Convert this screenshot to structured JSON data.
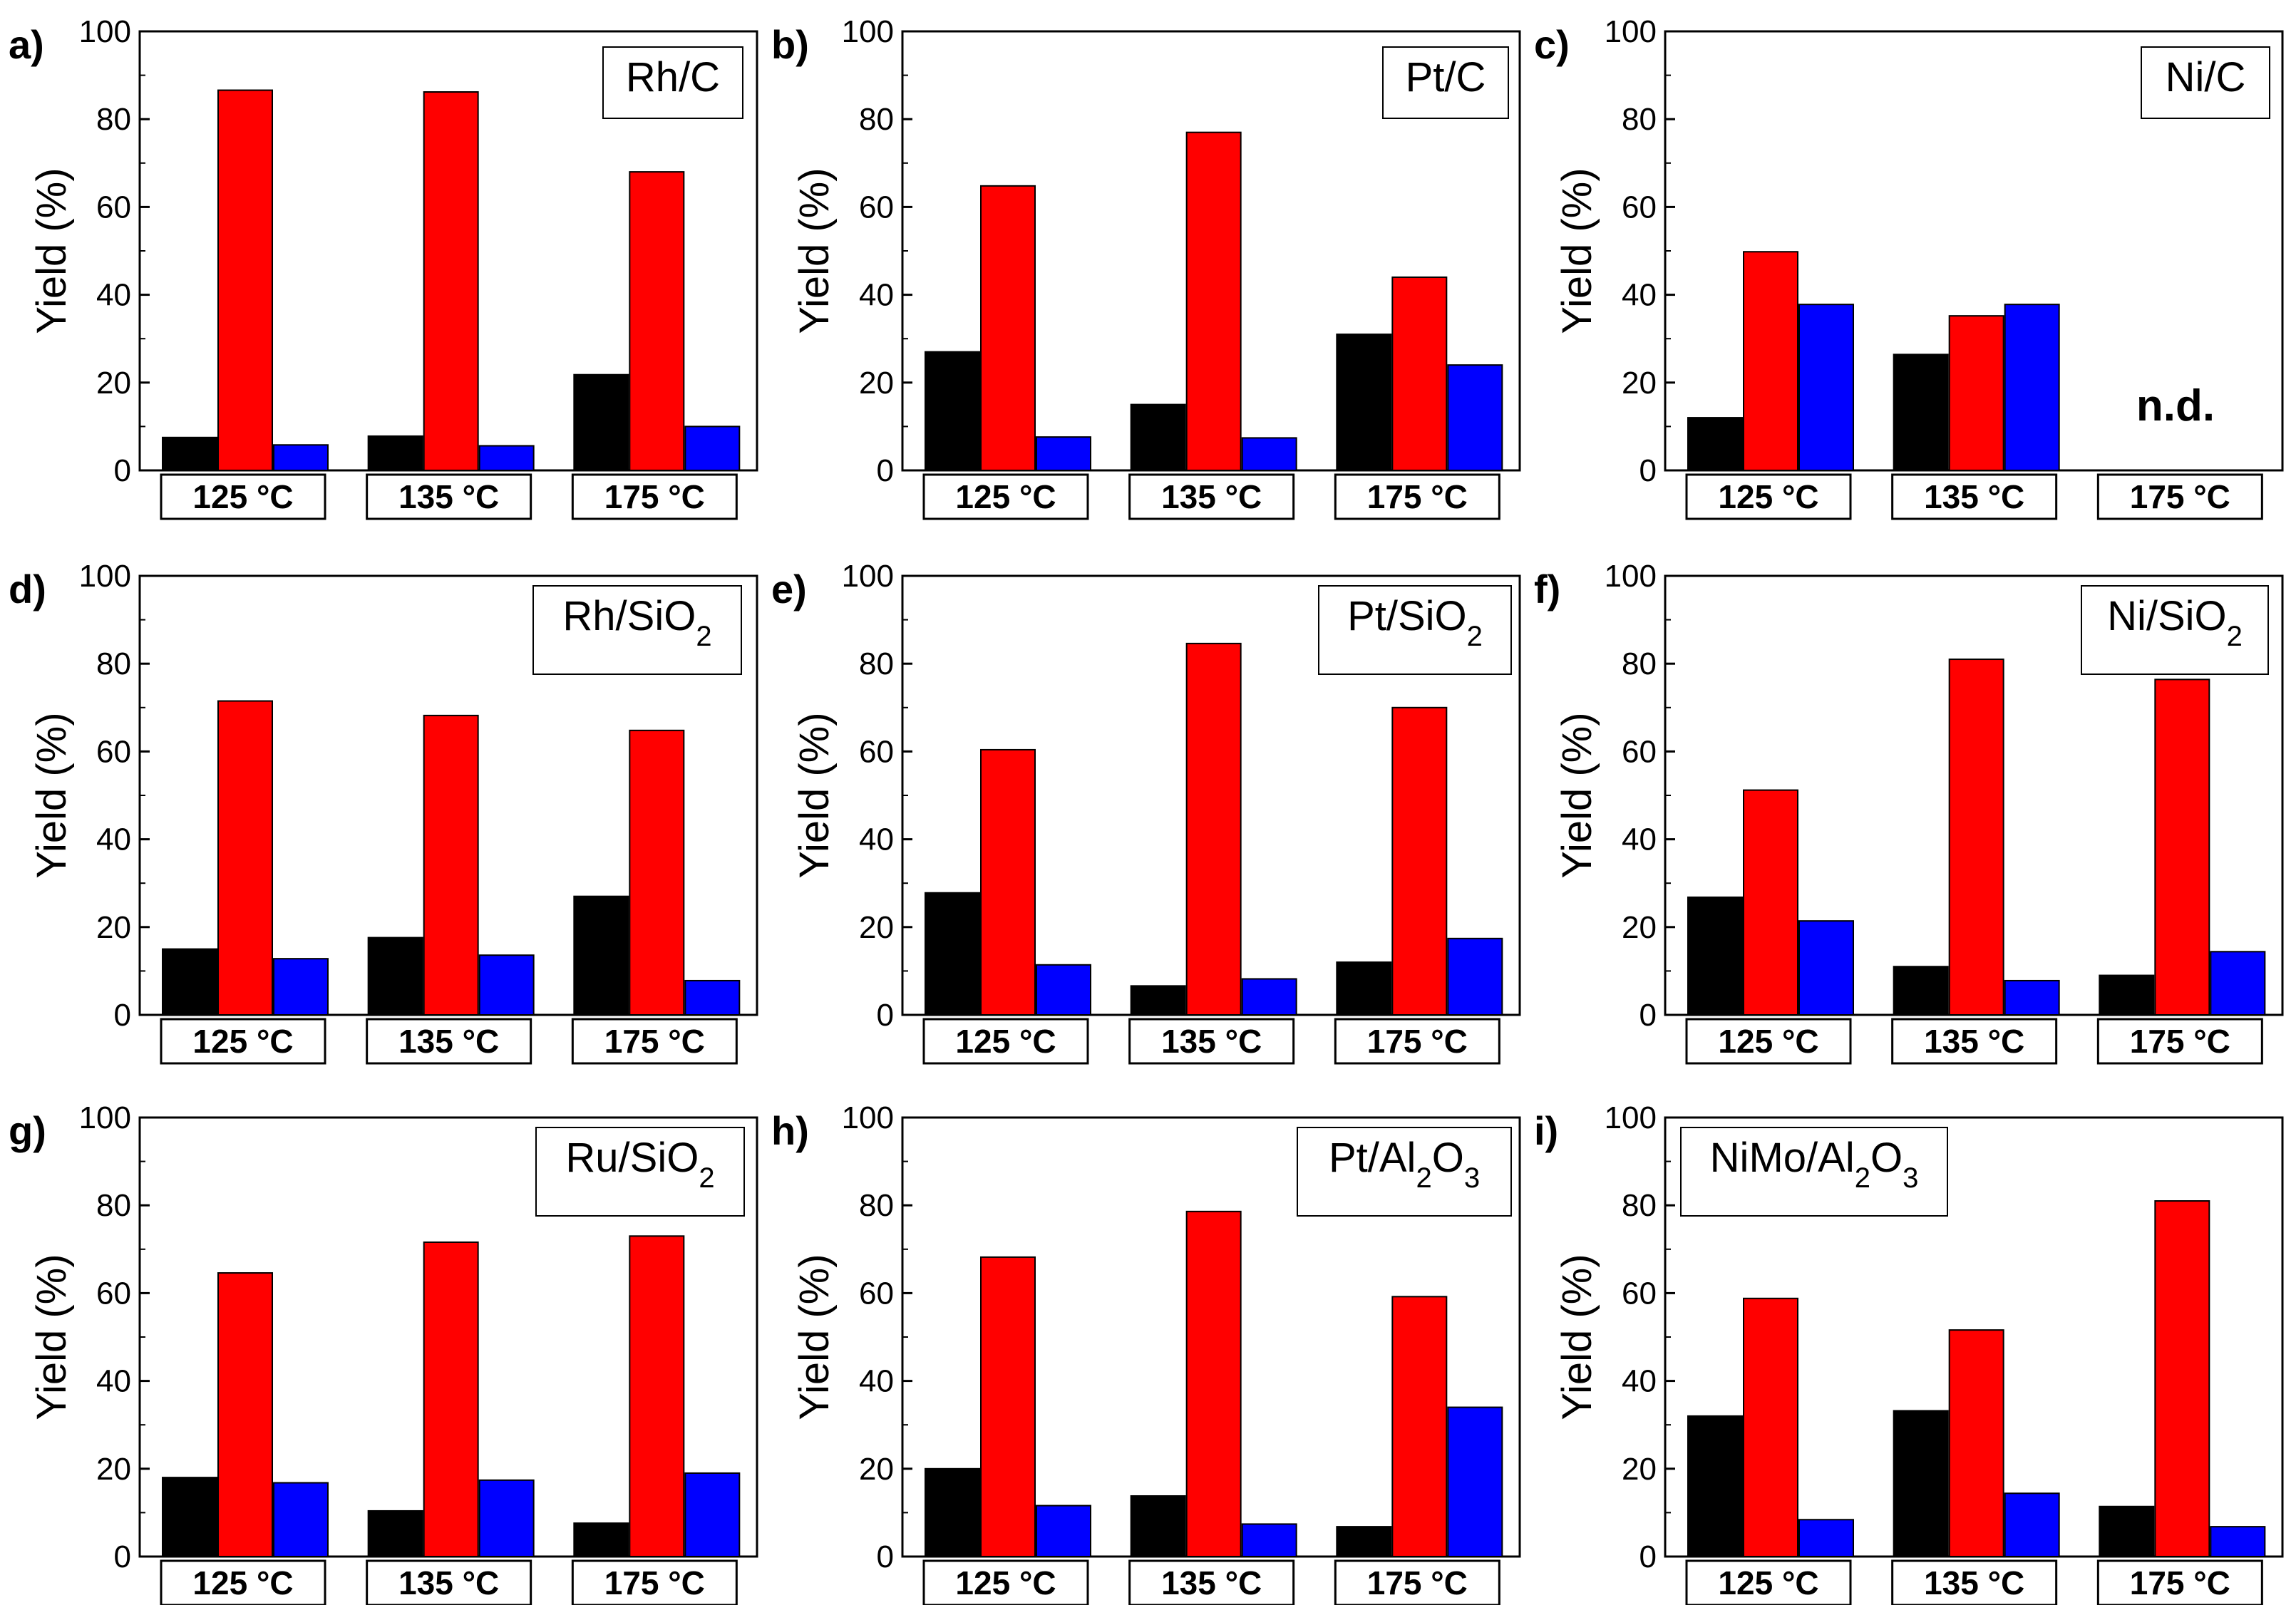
{
  "colors": {
    "series": [
      "#000000",
      "#ff0000",
      "#0000ff"
    ]
  },
  "chart_data": [
    {
      "type": "bar",
      "panel_label": "a)",
      "title": "Rh/C",
      "title_sub": "",
      "title_tail": "",
      "title_sub2": "",
      "ylabel": "Yield (%)",
      "ylim": [
        0,
        100
      ],
      "yticks": [
        "0",
        "20",
        "40",
        "60",
        "80",
        "100"
      ],
      "categories": [
        "125 °C",
        "135 °C",
        "175 °C"
      ],
      "series": [
        {
          "values": [
            7.5,
            7.8,
            21.8
          ]
        },
        {
          "values": [
            86.6,
            86.2,
            68.0
          ]
        },
        {
          "values": [
            5.8,
            5.6,
            10.0
          ]
        }
      ],
      "annotation": ""
    },
    {
      "type": "bar",
      "panel_label": "b)",
      "title": "Pt/C",
      "title_sub": "",
      "title_tail": "",
      "title_sub2": "",
      "ylabel": "Yield (%)",
      "ylim": [
        0,
        100
      ],
      "yticks": [
        "0",
        "20",
        "40",
        "60",
        "80",
        "100"
      ],
      "categories": [
        "125 °C",
        "135 °C",
        "175 °C"
      ],
      "series": [
        {
          "values": [
            27.0,
            15.0,
            31.0
          ]
        },
        {
          "values": [
            64.8,
            77.0,
            44.0
          ]
        },
        {
          "values": [
            7.6,
            7.4,
            24.0
          ]
        }
      ],
      "annotation": ""
    },
    {
      "type": "bar",
      "panel_label": "c)",
      "title": "Ni/C",
      "title_sub": "",
      "title_tail": "",
      "title_sub2": "",
      "ylabel": "Yield (%)",
      "ylim": [
        0,
        100
      ],
      "yticks": [
        "0",
        "20",
        "40",
        "60",
        "80",
        "100"
      ],
      "categories": [
        "125 °C",
        "135 °C",
        "175 °C"
      ],
      "series": [
        {
          "values": [
            12.0,
            26.4,
            0
          ]
        },
        {
          "values": [
            49.8,
            35.2,
            0
          ]
        },
        {
          "values": [
            37.8,
            37.8,
            0
          ]
        }
      ],
      "annotation": "n.d."
    },
    {
      "type": "bar",
      "panel_label": "d)",
      "title": "Rh/SiO",
      "title_sub": "2",
      "title_tail": "",
      "title_sub2": "",
      "ylabel": "Yield (%)",
      "ylim": [
        0,
        100
      ],
      "yticks": [
        "0",
        "20",
        "40",
        "60",
        "80",
        "100"
      ],
      "categories": [
        "125 °C",
        "135 °C",
        "175 °C"
      ],
      "series": [
        {
          "values": [
            15.0,
            17.6,
            27.0
          ]
        },
        {
          "values": [
            71.5,
            68.2,
            64.8
          ]
        },
        {
          "values": [
            12.8,
            13.6,
            7.8
          ]
        }
      ],
      "annotation": ""
    },
    {
      "type": "bar",
      "panel_label": "e)",
      "title": "Pt/SiO",
      "title_sub": "2",
      "title_tail": "",
      "title_sub2": "",
      "ylabel": "Yield (%)",
      "ylim": [
        0,
        100
      ],
      "yticks": [
        "0",
        "20",
        "40",
        "60",
        "80",
        "100"
      ],
      "categories": [
        "125 °C",
        "135 °C",
        "175 °C"
      ],
      "series": [
        {
          "values": [
            27.8,
            6.6,
            12.0
          ]
        },
        {
          "values": [
            60.4,
            84.6,
            70.0
          ]
        },
        {
          "values": [
            11.4,
            8.2,
            17.4
          ]
        }
      ],
      "annotation": ""
    },
    {
      "type": "bar",
      "panel_label": "f)",
      "title": "Ni/SiO",
      "title_sub": "2",
      "title_tail": "",
      "title_sub2": "",
      "ylabel": "Yield (%)",
      "ylim": [
        0,
        100
      ],
      "yticks": [
        "0",
        "20",
        "40",
        "60",
        "80",
        "100"
      ],
      "categories": [
        "125 °C",
        "135 °C",
        "175 °C"
      ],
      "series": [
        {
          "values": [
            26.8,
            11.0,
            9.0
          ]
        },
        {
          "values": [
            51.2,
            81.0,
            76.4
          ]
        },
        {
          "values": [
            21.4,
            7.8,
            14.4
          ]
        }
      ],
      "annotation": ""
    },
    {
      "type": "bar",
      "panel_label": "g)",
      "title": "Ru/SiO",
      "title_sub": "2",
      "title_tail": "",
      "title_sub2": "",
      "ylabel": "Yield (%)",
      "ylim": [
        0,
        100
      ],
      "yticks": [
        "0",
        "20",
        "40",
        "60",
        "80",
        "100"
      ],
      "categories": [
        "125 °C",
        "135 °C",
        "175 °C"
      ],
      "series": [
        {
          "values": [
            18.0,
            10.4,
            7.6
          ]
        },
        {
          "values": [
            64.6,
            71.6,
            73.0
          ]
        },
        {
          "values": [
            16.8,
            17.4,
            19.0
          ]
        }
      ],
      "annotation": ""
    },
    {
      "type": "bar",
      "panel_label": "h)",
      "title": "Pt/Al",
      "title_sub": "2",
      "title_tail": "O",
      "title_sub2": "3",
      "ylabel": "Yield (%)",
      "ylim": [
        0,
        100
      ],
      "yticks": [
        "0",
        "20",
        "40",
        "60",
        "80",
        "100"
      ],
      "categories": [
        "125 °C",
        "135 °C",
        "175 °C"
      ],
      "series": [
        {
          "values": [
            20.0,
            13.8,
            6.8
          ]
        },
        {
          "values": [
            68.2,
            78.6,
            59.2
          ]
        },
        {
          "values": [
            11.6,
            7.4,
            34.0
          ]
        }
      ],
      "annotation": ""
    },
    {
      "type": "bar",
      "panel_label": "i)",
      "title": "NiMo/Al",
      "title_sub": "2",
      "title_tail": "O",
      "title_sub2": "3",
      "ylabel": "Yield (%)",
      "ylim": [
        0,
        100
      ],
      "yticks": [
        "0",
        "20",
        "40",
        "60",
        "80",
        "100"
      ],
      "categories": [
        "125 °C",
        "135 °C",
        "175 °C"
      ],
      "series": [
        {
          "values": [
            32.0,
            33.2,
            11.4
          ]
        },
        {
          "values": [
            58.8,
            51.6,
            81.0
          ]
        },
        {
          "values": [
            8.4,
            14.4,
            6.8
          ]
        }
      ],
      "annotation": ""
    }
  ]
}
